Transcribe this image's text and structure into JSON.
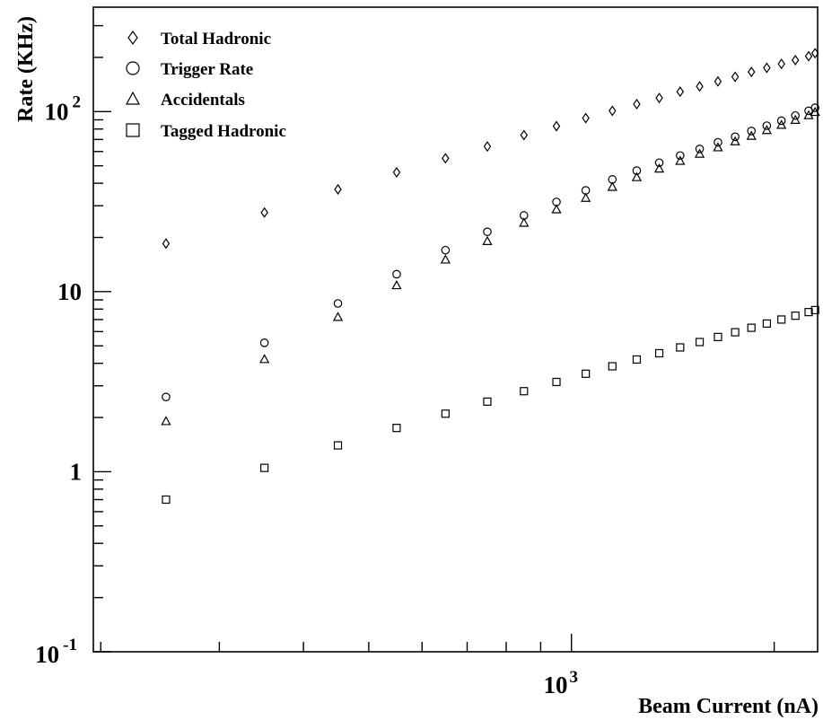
{
  "chart_data": {
    "type": "scatter",
    "title": "",
    "xlabel": "Beam Current (nA)",
    "ylabel": "Rate (KHz)",
    "xscale": "log",
    "yscale": "log",
    "xlim": [
      195,
      2320
    ],
    "ylim": [
      0.1,
      380
    ],
    "grid": false,
    "legend_position": "top-left",
    "x_tick_labels": [
      {
        "value": 1000,
        "base": "10",
        "exp": "3"
      }
    ],
    "y_tick_labels": [
      {
        "value": 0.1,
        "base": "10",
        "exp": "-1"
      },
      {
        "value": 1,
        "base": "1",
        "exp": ""
      },
      {
        "value": 10,
        "base": "10",
        "exp": ""
      },
      {
        "value": 100,
        "base": "10",
        "exp": "2"
      }
    ],
    "series": [
      {
        "name": "Total Hadronic",
        "marker": "diamond",
        "x": [
          250,
          350,
          450,
          550,
          650,
          750,
          850,
          950,
          1050,
          1150,
          1250,
          1350,
          1450,
          1550,
          1650,
          1750,
          1850,
          1950,
          2050,
          2150,
          2250,
          2300
        ],
        "y": [
          18.5,
          27.5,
          37,
          46,
          55,
          64,
          74,
          83,
          92,
          101,
          110,
          119,
          129,
          138,
          147,
          156,
          166,
          175,
          184,
          193,
          203,
          211
        ]
      },
      {
        "name": "Trigger Rate",
        "marker": "circle",
        "x": [
          250,
          350,
          450,
          550,
          650,
          750,
          850,
          950,
          1050,
          1150,
          1250,
          1350,
          1450,
          1550,
          1650,
          1750,
          1850,
          1950,
          2050,
          2150,
          2250,
          2300
        ],
        "y": [
          2.6,
          5.2,
          8.6,
          12.5,
          17,
          21.5,
          26.5,
          31.5,
          36.5,
          42,
          47,
          52,
          57,
          62,
          67.5,
          72.5,
          78,
          83.5,
          89,
          95,
          101,
          105
        ]
      },
      {
        "name": "Accidentals",
        "marker": "triangle",
        "x": [
          250,
          350,
          450,
          550,
          650,
          750,
          850,
          950,
          1050,
          1150,
          1250,
          1350,
          1450,
          1550,
          1650,
          1750,
          1850,
          1950,
          2050,
          2150,
          2250,
          2300
        ],
        "y": [
          1.9,
          4.2,
          7.2,
          10.8,
          15,
          19,
          24,
          28.5,
          33,
          38,
          43,
          48,
          53,
          58,
          63,
          68,
          73,
          78.5,
          84,
          89.5,
          95,
          99
        ]
      },
      {
        "name": "Tagged Hadronic",
        "marker": "square",
        "x": [
          250,
          350,
          450,
          550,
          650,
          750,
          850,
          950,
          1050,
          1150,
          1250,
          1350,
          1450,
          1550,
          1650,
          1750,
          1850,
          1950,
          2050,
          2150,
          2250,
          2300
        ],
        "y": [
          0.7,
          1.05,
          1.4,
          1.75,
          2.1,
          2.45,
          2.8,
          3.15,
          3.5,
          3.85,
          4.2,
          4.55,
          4.9,
          5.25,
          5.6,
          5.95,
          6.3,
          6.65,
          7.0,
          7.35,
          7.7,
          7.9
        ]
      }
    ]
  }
}
